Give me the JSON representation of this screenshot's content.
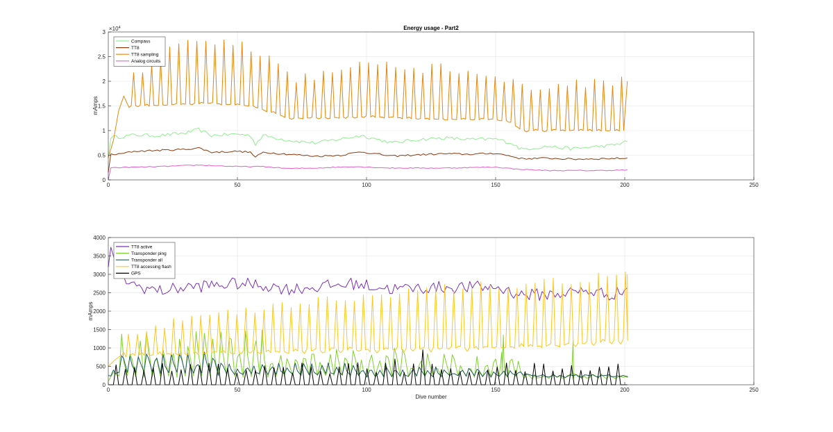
{
  "chart_data": [
    {
      "type": "line",
      "title": "Energy usage - Part2",
      "xlabel": "",
      "ylabel": "mAmps",
      "xlim": [
        0,
        250
      ],
      "ylim": [
        0,
        30000
      ],
      "y_exponent_label": "×10",
      "y_exponent_value": "4",
      "xticks": [
        0,
        50,
        100,
        150,
        200,
        250
      ],
      "yticks": [
        0,
        5000,
        10000,
        15000,
        20000,
        25000,
        30000
      ],
      "ytick_labels": [
        "0",
        "0.5",
        "1",
        "1.5",
        "2",
        "2.5",
        "3"
      ],
      "grid": true,
      "legend_position": "top-left",
      "series": [
        {
          "name": "Compass",
          "color": "#90ee90",
          "kind": "smooth",
          "start": [
            0,
            4500
          ],
          "anchors": [
            [
              4,
              8700
            ],
            [
              10,
              9100
            ],
            [
              20,
              9000
            ],
            [
              30,
              9500
            ],
            [
              35,
              10200
            ],
            [
              40,
              9000
            ],
            [
              50,
              9300
            ],
            [
              55,
              9000
            ],
            [
              57,
              7300
            ],
            [
              60,
              9000
            ],
            [
              70,
              8000
            ],
            [
              80,
              7500
            ],
            [
              90,
              8300
            ],
            [
              98,
              9000
            ],
            [
              110,
              7500
            ],
            [
              120,
              8200
            ],
            [
              130,
              8500
            ],
            [
              140,
              8200
            ],
            [
              150,
              8300
            ],
            [
              156,
              7500
            ],
            [
              160,
              6200
            ],
            [
              170,
              6800
            ],
            [
              180,
              6300
            ],
            [
              190,
              6800
            ],
            [
              195,
              7000
            ],
            [
              201,
              7800
            ]
          ],
          "noise": 350
        },
        {
          "name": "TT8",
          "color": "#8b3a0f",
          "kind": "smooth",
          "start": [
            0,
            1500
          ],
          "anchors": [
            [
              4,
              5200
            ],
            [
              10,
              5800
            ],
            [
              20,
              6000
            ],
            [
              30,
              6200
            ],
            [
              35,
              6500
            ],
            [
              40,
              5600
            ],
            [
              50,
              5800
            ],
            [
              55,
              5600
            ],
            [
              57,
              4600
            ],
            [
              60,
              5600
            ],
            [
              70,
              5200
            ],
            [
              80,
              4800
            ],
            [
              90,
              5000
            ],
            [
              98,
              5700
            ],
            [
              110,
              4800
            ],
            [
              120,
              5100
            ],
            [
              130,
              5300
            ],
            [
              140,
              5200
            ],
            [
              150,
              5400
            ],
            [
              156,
              4800
            ],
            [
              160,
              4300
            ],
            [
              170,
              4400
            ],
            [
              180,
              4200
            ],
            [
              190,
              4300
            ],
            [
              201,
              4400
            ]
          ],
          "noise": 180
        },
        {
          "name": "TT8 sampling",
          "color": "#e8850a",
          "kind": "spiky",
          "start": [
            0,
            4500
          ],
          "ramp": [
            [
              2,
              8000
            ],
            [
              4,
              14000
            ],
            [
              6,
              17000
            ]
          ],
          "period": 3.5,
          "x0": 8,
          "x_end": 201,
          "base": [
            [
              8,
              15000
            ],
            [
              40,
              15500
            ],
            [
              56,
              15000
            ],
            [
              70,
              12500
            ],
            [
              100,
              12800
            ],
            [
              120,
              12400
            ],
            [
              150,
              12200
            ],
            [
              155,
              12000
            ],
            [
              160,
              10000
            ],
            [
              201,
              10000
            ]
          ],
          "peak": [
            [
              8,
              20500
            ],
            [
              30,
              28000
            ],
            [
              50,
              27500
            ],
            [
              65,
              25000
            ],
            [
              72,
              20500
            ],
            [
              90,
              22500
            ],
            [
              100,
              23000
            ],
            [
              130,
              22500
            ],
            [
              150,
              21500
            ],
            [
              160,
              18500
            ],
            [
              170,
              19000
            ],
            [
              201,
              20000
            ]
          ],
          "last": [
            201,
            20000
          ]
        },
        {
          "name": "Analog circuits",
          "color": "#e060c8",
          "kind": "smooth",
          "start": [
            0,
            100
          ],
          "anchors": [
            [
              4,
              2500
            ],
            [
              20,
              2700
            ],
            [
              35,
              3000
            ],
            [
              50,
              2700
            ],
            [
              60,
              2700
            ],
            [
              70,
              2300
            ],
            [
              80,
              2400
            ],
            [
              95,
              2700
            ],
            [
              110,
              2400
            ],
            [
              130,
              2400
            ],
            [
              150,
              2600
            ],
            [
              158,
              2200
            ],
            [
              170,
              1900
            ],
            [
              190,
              1900
            ],
            [
              201,
              2000
            ]
          ],
          "noise": 90
        }
      ]
    },
    {
      "type": "line",
      "title": "",
      "xlabel": "Dive number",
      "ylabel": "mAmps",
      "xlim": [
        0,
        250
      ],
      "ylim": [
        0,
        4000
      ],
      "xticks": [
        0,
        50,
        100,
        150,
        200,
        250
      ],
      "yticks": [
        0,
        500,
        1000,
        1500,
        2000,
        2500,
        3000,
        3500,
        4000
      ],
      "ytick_labels": [
        "0",
        "500",
        "1000",
        "1500",
        "2000",
        "2500",
        "3000",
        "3500",
        "4000"
      ],
      "grid": true,
      "legend_position": "top-left",
      "series": [
        {
          "name": "TT8 active",
          "color": "#7b2fbe",
          "kind": "smooth",
          "start": [
            0,
            3200
          ],
          "anchors": [
            [
              2,
              3600
            ],
            [
              4,
              3000
            ],
            [
              10,
              2700
            ],
            [
              20,
              2550
            ],
            [
              30,
              2650
            ],
            [
              50,
              2750
            ],
            [
              60,
              2700
            ],
            [
              70,
              2600
            ],
            [
              80,
              2650
            ],
            [
              95,
              2750
            ],
            [
              110,
              2600
            ],
            [
              130,
              2650
            ],
            [
              150,
              2650
            ],
            [
              160,
              2450
            ],
            [
              170,
              2450
            ],
            [
              185,
              2550
            ],
            [
              195,
              2450
            ],
            [
              201,
              2600
            ]
          ],
          "noise": 170
        },
        {
          "name": "Transponder ping",
          "color": "#7fd12f",
          "kind": "burst",
          "start": [
            0,
            100
          ],
          "ranges": [
            [
              3,
              60,
              200,
              1500
            ],
            [
              60,
              120,
              200,
              1000
            ],
            [
              120,
              160,
              200,
              900
            ],
            [
              160,
              201,
              150,
              300
            ]
          ],
          "extra": [
            [
              180,
              1200
            ],
            [
              153,
              1350
            ]
          ],
          "period": 3.2,
          "x_end": 201
        },
        {
          "name": "Transponder all",
          "color": "#1f5a5a",
          "kind": "burst",
          "start": [
            0,
            250
          ],
          "ranges": [
            [
              3,
              40,
              300,
              900
            ],
            [
              40,
              100,
              250,
              600
            ],
            [
              100,
              160,
              200,
              500
            ],
            [
              160,
              201,
              200,
              300
            ]
          ],
          "extra": [],
          "period": 3.2,
          "x_end": 201
        },
        {
          "name": "TT8 accessing flash",
          "color": "#ffc61e",
          "kind": "spiky",
          "start": [
            0,
            500
          ],
          "ramp": [
            [
              3,
              700
            ],
            [
              5,
              800
            ]
          ],
          "period": 3.5,
          "x0": 6,
          "x_end": 201,
          "base": [
            [
              6,
              800
            ],
            [
              30,
              850
            ],
            [
              60,
              900
            ],
            [
              100,
              950
            ],
            [
              140,
              1000
            ],
            [
              170,
              1050
            ],
            [
              201,
              1200
            ]
          ],
          "peak": [
            [
              6,
              1300
            ],
            [
              30,
              1800
            ],
            [
              60,
              2100
            ],
            [
              100,
              2400
            ],
            [
              130,
              2600
            ],
            [
              160,
              2750
            ],
            [
              180,
              2850
            ],
            [
              201,
              3000
            ]
          ],
          "last": [
            201,
            3000
          ]
        },
        {
          "name": "GPS",
          "color": "#000000",
          "kind": "gps",
          "start": [
            0,
            0
          ],
          "period": 3.6,
          "x0": 2,
          "x_end": 201,
          "peak_range": [
            300,
            600
          ],
          "special": [
            [
              110,
              700
            ],
            [
              121,
              950
            ],
            [
              95,
              600
            ],
            [
              55,
              400
            ]
          ]
        }
      ]
    }
  ]
}
